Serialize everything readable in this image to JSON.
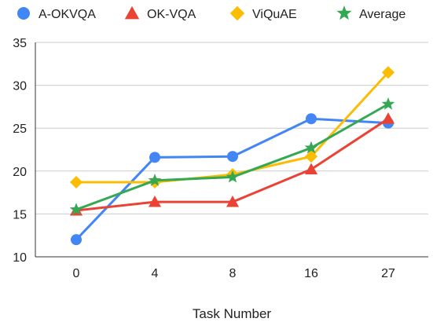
{
  "chart_data": {
    "type": "line",
    "xlabel": "Task Number",
    "ylabel": "",
    "categories": [
      "0",
      "4",
      "8",
      "16",
      "27"
    ],
    "ylim": [
      10,
      35
    ],
    "yticks": [
      "10",
      "15",
      "20",
      "25",
      "30",
      "35"
    ],
    "grid": "horizontal",
    "legend_placement": "top",
    "series": [
      {
        "name": "A-OKVQA",
        "marker": "circle",
        "color": "#4285F4",
        "values": [
          12.0,
          21.6,
          21.7,
          26.1,
          25.6
        ]
      },
      {
        "name": "OK-VQA",
        "marker": "triangle",
        "color": "#EA4335",
        "values": [
          15.4,
          16.4,
          16.4,
          20.2,
          26.1
        ]
      },
      {
        "name": "ViQuAE",
        "marker": "diamond",
        "color": "#FBBC04",
        "values": [
          18.7,
          18.7,
          19.6,
          21.7,
          31.5
        ]
      },
      {
        "name": "Average",
        "marker": "star",
        "color": "#34A853",
        "values": [
          15.5,
          18.9,
          19.3,
          22.7,
          27.8
        ]
      }
    ]
  }
}
